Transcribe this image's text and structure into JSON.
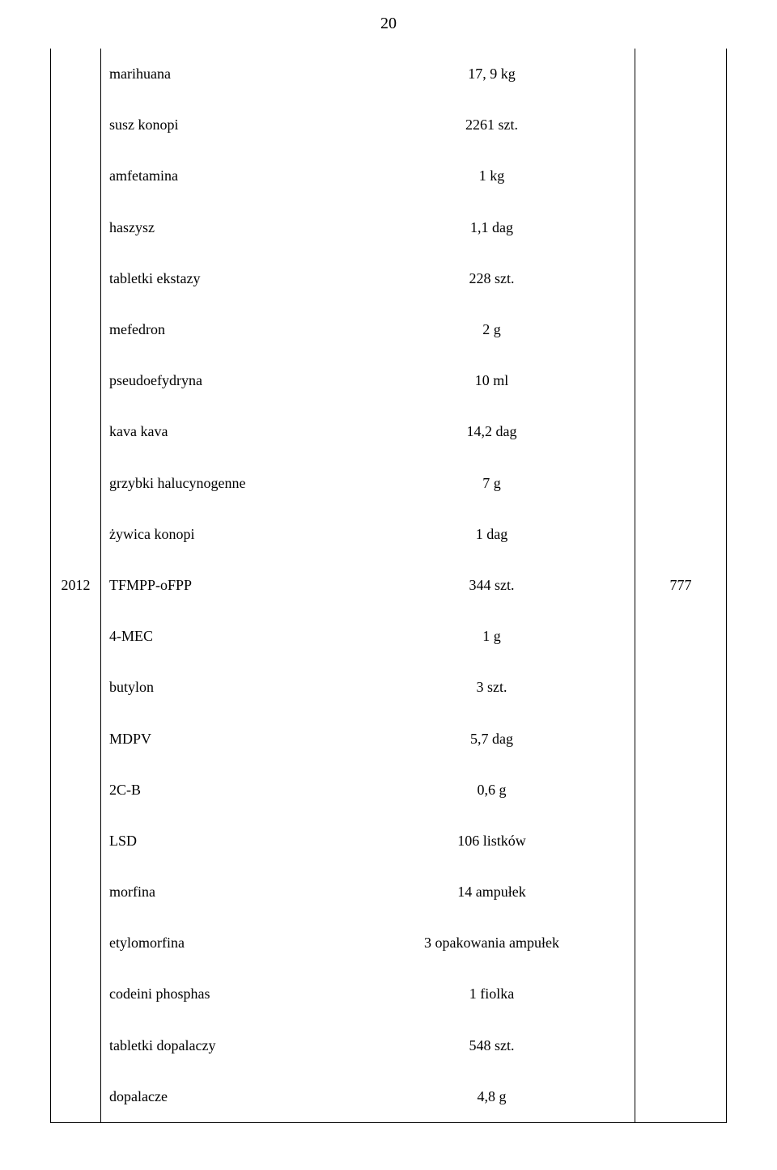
{
  "page_number": "20",
  "year": "2012",
  "count": "777",
  "rows": [
    {
      "name": "marihuana",
      "value": "17, 9 kg"
    },
    {
      "name": "susz konopi",
      "value": "2261 szt."
    },
    {
      "name": "amfetamina",
      "value": "1 kg"
    },
    {
      "name": "haszysz",
      "value": "1,1 dag"
    },
    {
      "name": "tabletki ekstazy",
      "value": "228 szt."
    },
    {
      "name": "mefedron",
      "value": "2 g"
    },
    {
      "name": "pseudoefydryna",
      "value": "10 ml"
    },
    {
      "name": "kava kava",
      "value": "14,2 dag"
    },
    {
      "name": "grzybki halucynogenne",
      "value": "7 g"
    },
    {
      "name": "żywica konopi",
      "value": "1 dag"
    },
    {
      "name": "TFMPP-oFPP",
      "value": "344 szt."
    },
    {
      "name": "4-MEC",
      "value": "1 g"
    },
    {
      "name": "butylon",
      "value": "3 szt."
    },
    {
      "name": "MDPV",
      "value": "5,7 dag"
    },
    {
      "name": "2C-B",
      "value": "0,6 g"
    },
    {
      "name": "LSD",
      "value": "106 listków"
    },
    {
      "name": "morfina",
      "value": "14 ampułek"
    },
    {
      "name": "etylomorfina",
      "value": "3 opakowania ampułek"
    },
    {
      "name": "codeini phosphas",
      "value": "1 fiolka"
    },
    {
      "name": "tabletki dopalaczy",
      "value": "548 szt."
    },
    {
      "name": "dopalacze",
      "value": "4,8 g"
    }
  ]
}
